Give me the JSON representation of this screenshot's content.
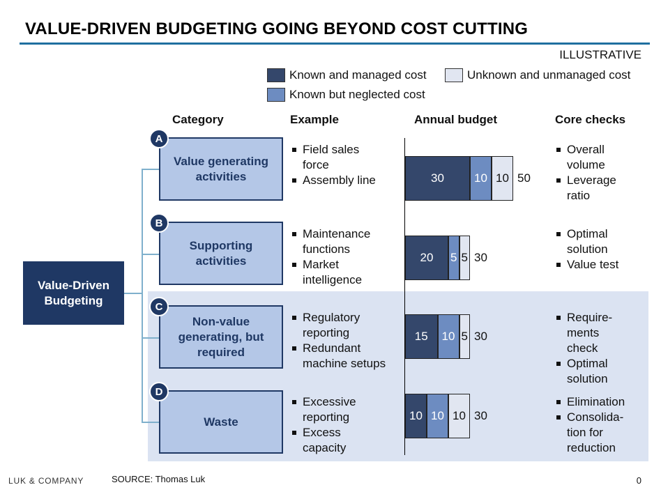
{
  "title": "VALUE-DRIVEN BUDGETING GOING BEYOND COST CUTTING",
  "tag": "ILLUSTRATIVE",
  "legend": {
    "known_managed": "Known and managed cost",
    "unknown_unmanaged": "Unknown and unmanaged cost",
    "known_neglected": "Known but neglected cost"
  },
  "colors": {
    "known_managed": "#34476b",
    "known_neglected": "#6d8cc1",
    "unknown_unmanaged": "#e1e6f1",
    "dark_navy": "#1f3864",
    "category_fill": "#b4c7e7",
    "shade": "#dbe3f2"
  },
  "headers": {
    "category": "Category",
    "example": "Example",
    "annual_budget": "Annual budget",
    "core_checks": "Core checks"
  },
  "root": {
    "label_line1": "Value-Driven",
    "label_line2": "Budgeting"
  },
  "rows": [
    {
      "badge": "A",
      "category": [
        "Value generating",
        "activities"
      ],
      "examples": [
        [
          "Field sales",
          "force"
        ],
        [
          "Assembly line"
        ]
      ],
      "budget": {
        "known_managed": 30,
        "known_neglected": 10,
        "unknown_unmanaged": 10,
        "total": 50
      },
      "labels": {
        "km": "30",
        "kn": "10",
        "uu": "10",
        "total": "50"
      },
      "checks": [
        [
          "Overall",
          "volume"
        ],
        [
          "Leverage",
          "ratio"
        ]
      ]
    },
    {
      "badge": "B",
      "category": [
        "Supporting",
        "activities"
      ],
      "examples": [
        [
          "Maintenance",
          "functions"
        ],
        [
          "Market",
          "intelligence"
        ]
      ],
      "budget": {
        "known_managed": 20,
        "known_neglected": 5,
        "unknown_unmanaged": 5,
        "total": 30
      },
      "labels": {
        "km": "20",
        "kn": "5",
        "uu": "5",
        "total": "30"
      },
      "checks": [
        [
          "Optimal",
          "solution"
        ],
        [
          "Value test"
        ]
      ]
    },
    {
      "badge": "C",
      "category": [
        "Non-value",
        "generating, but",
        "required"
      ],
      "examples": [
        [
          "Regulatory",
          "reporting"
        ],
        [
          "Redundant",
          "machine setups"
        ]
      ],
      "budget": {
        "known_managed": 15,
        "known_neglected": 10,
        "unknown_unmanaged": 5,
        "total": 30
      },
      "labels": {
        "km": "15",
        "kn": "10",
        "uu": "5",
        "total": "30"
      },
      "checks": [
        [
          "Require-",
          "ments",
          "check"
        ],
        [
          "Optimal",
          "solution"
        ]
      ]
    },
    {
      "badge": "D",
      "category": [
        "Waste"
      ],
      "examples": [
        [
          "Excessive",
          "reporting"
        ],
        [
          "Excess",
          "capacity"
        ]
      ],
      "budget": {
        "known_managed": 10,
        "known_neglected": 10,
        "unknown_unmanaged": 10,
        "total": 30
      },
      "labels": {
        "km": "10",
        "kn": "10",
        "uu": "10",
        "total": "30"
      },
      "checks": [
        [
          "Elimination"
        ],
        [
          "Consolida-",
          "tion for",
          "reduction"
        ]
      ]
    }
  ],
  "footer": {
    "logo": "LUK & COMPANY",
    "source": "SOURCE: Thomas Luk",
    "page": "0"
  }
}
